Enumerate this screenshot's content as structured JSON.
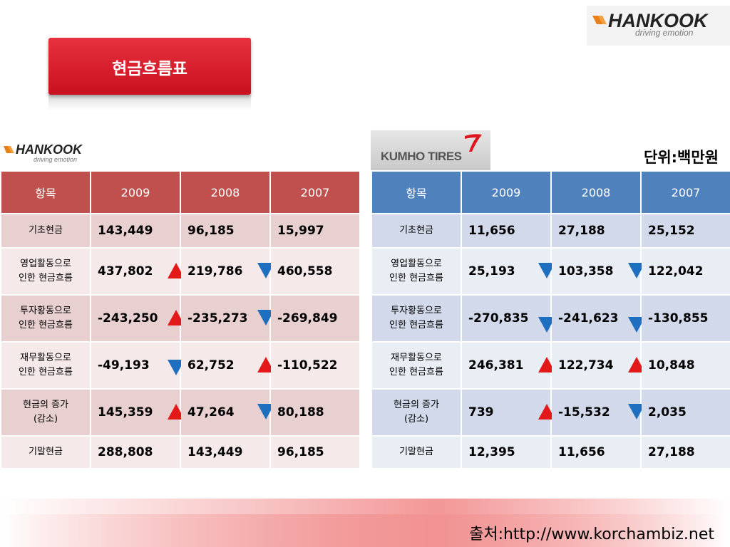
{
  "logos": {
    "hankook_word": "HANKOOK",
    "hankook_tagline": "driving emotion",
    "kumho_word": "KUMHO TIRES"
  },
  "title": "현금흐름표",
  "unit": "단위:백만원",
  "source": "출처:http://www.korchambiz.net",
  "colors": {
    "hankook_header": "#c0504d",
    "kumho_header": "#4f81bd",
    "up_arrow": "#e31818",
    "down_arrow": "#1f6fc1"
  },
  "hankook_table": {
    "headers": [
      "항목",
      "2009",
      "2008",
      "2007"
    ],
    "rows": [
      {
        "label1": "기초현금",
        "label2": "",
        "values": [
          "143,449",
          "96,185",
          "15,997"
        ],
        "arrows": [
          "",
          "",
          ""
        ]
      },
      {
        "label1": "영업활동으로",
        "label2": "인한 현금흐름",
        "values": [
          "437,802",
          "219,786",
          "460,558"
        ],
        "arrows": [
          "up",
          "down",
          ""
        ]
      },
      {
        "label1": "투자황동으로",
        "label2": "인한 현금흐름",
        "values": [
          "-243,250",
          "-235,273",
          "-269,849"
        ],
        "arrows": [
          "up",
          "down",
          ""
        ]
      },
      {
        "label1": "재무활동으로",
        "label2": "인한 현금흐름",
        "values": [
          "-49,193",
          "62,752",
          "-110,522"
        ],
        "arrows": [
          "down",
          "up",
          ""
        ]
      },
      {
        "label1": "현금의 증가",
        "label2": "(감소)",
        "values": [
          "145,359",
          "47,264",
          "80,188"
        ],
        "arrows": [
          "up",
          "down",
          ""
        ]
      },
      {
        "label1": "기말현금",
        "label2": "",
        "values": [
          "288,808",
          "143,449",
          "96,185"
        ],
        "arrows": [
          "",
          "",
          ""
        ]
      }
    ]
  },
  "kumho_table": {
    "headers": [
      "항목",
      "2009",
      "2008",
      "2007"
    ],
    "rows": [
      {
        "label1": "기초현금",
        "label2": "",
        "values": [
          "11,656",
          "27,188",
          "25,152"
        ],
        "arrows": [
          "",
          "",
          ""
        ]
      },
      {
        "label1": "영업활동으로",
        "label2": "인한 현금흐름",
        "values": [
          "25,193",
          "103,358",
          "122,042"
        ],
        "arrows": [
          "down",
          "down",
          ""
        ]
      },
      {
        "label1": "투자황동으로",
        "label2": "인한 현금흐름",
        "values": [
          "-270,835",
          "-241,623",
          "-130,855"
        ],
        "arrows": [
          "down",
          "down",
          ""
        ]
      },
      {
        "label1": "재무활동으로",
        "label2": "인한 현금흐름",
        "values": [
          "246,381",
          "122,734",
          "10,848"
        ],
        "arrows": [
          "up",
          "up",
          ""
        ]
      },
      {
        "label1": "현금의 증가",
        "label2": "(감소)",
        "values": [
          "739",
          "-15,532",
          "2,035"
        ],
        "arrows": [
          "up",
          "down",
          ""
        ]
      },
      {
        "label1": "기말현금",
        "label2": "",
        "values": [
          "12,395",
          "11,656",
          "27,188"
        ],
        "arrows": [
          "",
          "",
          ""
        ]
      }
    ]
  }
}
